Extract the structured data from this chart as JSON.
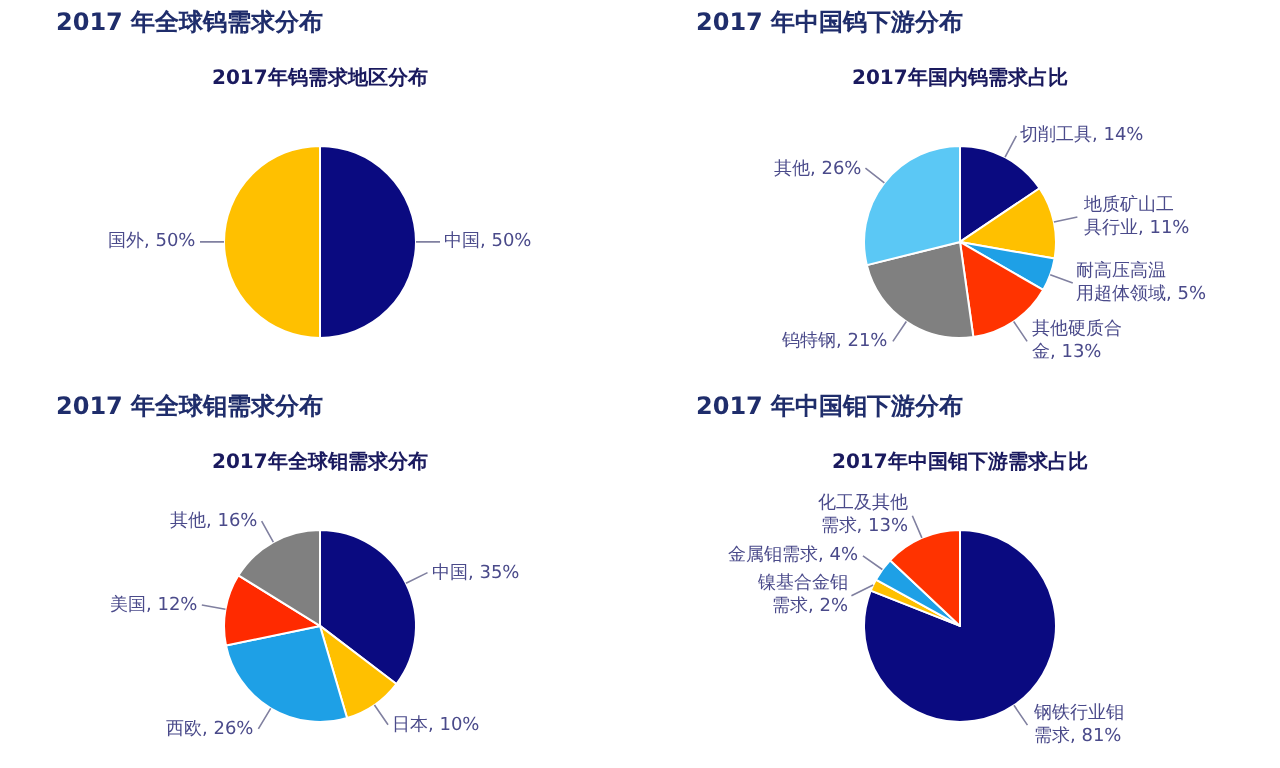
{
  "chart_data": [
    {
      "type": "pie",
      "title": "2017 年全球钨需求分布",
      "subtitle": "2017年钨需求地区分布",
      "categories": [
        "中国",
        "国外"
      ],
      "values": [
        50,
        50
      ],
      "colors": [
        "#0a0a80",
        "#ffc000"
      ],
      "value_labels": [
        "50%",
        "50%"
      ]
    },
    {
      "type": "pie",
      "title": "2017 年中国钨下游分布",
      "subtitle": "2017年国内钨需求占比",
      "categories": [
        "切削工具",
        "地质矿山工具行业",
        "耐高压高温用超体领域",
        "其他硬质合金",
        "钨特钢",
        "其他"
      ],
      "values": [
        14,
        11,
        5,
        13,
        21,
        26
      ],
      "colors": [
        "#0a0a80",
        "#ffc000",
        "#1ea0e6",
        "#ff3300",
        "#808080",
        "#5bc8f5"
      ],
      "value_labels": [
        "14%",
        "11%",
        "5%",
        "13%",
        "21%",
        "26%"
      ]
    },
    {
      "type": "pie",
      "title": "2017 年全球钼需求分布",
      "subtitle": "2017年全球钼需求分布",
      "categories": [
        "中国",
        "日本",
        "西欧",
        "美国",
        "其他"
      ],
      "values": [
        35,
        10,
        26,
        12,
        16
      ],
      "colors": [
        "#0a0a80",
        "#ffc000",
        "#1ea0e6",
        "#ff2a00",
        "#808080"
      ],
      "value_labels": [
        "35%",
        "10%",
        "26%",
        "12%",
        "16%"
      ]
    },
    {
      "type": "pie",
      "title": "2017 年中国钼下游分布",
      "subtitle": "2017年中国钼下游需求占比",
      "categories": [
        "钢铁行业钼需求",
        "镍基合金钼需求",
        "金属钼需求",
        "化工及其他需求"
      ],
      "values": [
        81,
        2,
        4,
        13
      ],
      "colors": [
        "#0a0a80",
        "#ffc000",
        "#1ea0e6",
        "#ff3300"
      ],
      "value_labels": [
        "81%",
        "2%",
        "4%",
        "13%"
      ]
    }
  ]
}
